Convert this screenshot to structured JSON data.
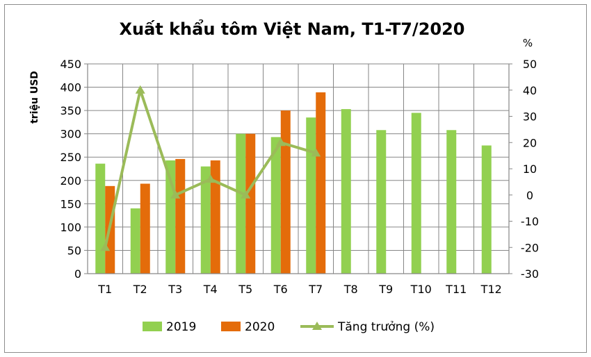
{
  "chart_data": {
    "type": "bar",
    "title": "Xuất khẩu tôm Việt Nam, T1-T7/2020",
    "ylabel": "triệu USD",
    "y2label": "%",
    "categories": [
      "T1",
      "T2",
      "T3",
      "T4",
      "T5",
      "T6",
      "T7",
      "T8",
      "T9",
      "T10",
      "T11",
      "T12"
    ],
    "ylim": [
      0,
      450
    ],
    "yticks": [
      "0",
      "50",
      "100",
      "150",
      "200",
      "250",
      "300",
      "350",
      "400",
      "450"
    ],
    "y2lim": [
      -30,
      50
    ],
    "y2ticks": [
      "-30",
      "-20",
      "-10",
      "0",
      "10",
      "20",
      "30",
      "40",
      "50"
    ],
    "grid": true,
    "legend_position": "bottom",
    "series": [
      {
        "name": "2019",
        "type": "bar",
        "axis": "left",
        "color": "#92d050",
        "values": [
          236,
          140,
          243,
          230,
          300,
          293,
          335,
          353,
          308,
          345,
          308,
          275
        ]
      },
      {
        "name": "2020",
        "type": "bar",
        "axis": "left",
        "color": "#e46c0a",
        "values": [
          188,
          193,
          246,
          243,
          300,
          350,
          389,
          null,
          null,
          null,
          null,
          null
        ]
      },
      {
        "name": "Tăng trưởng (%)",
        "type": "line",
        "axis": "right",
        "color": "#9bbb59",
        "values": [
          -20,
          40,
          0,
          6,
          0,
          20,
          16,
          null,
          null,
          null,
          null,
          null
        ]
      }
    ]
  }
}
